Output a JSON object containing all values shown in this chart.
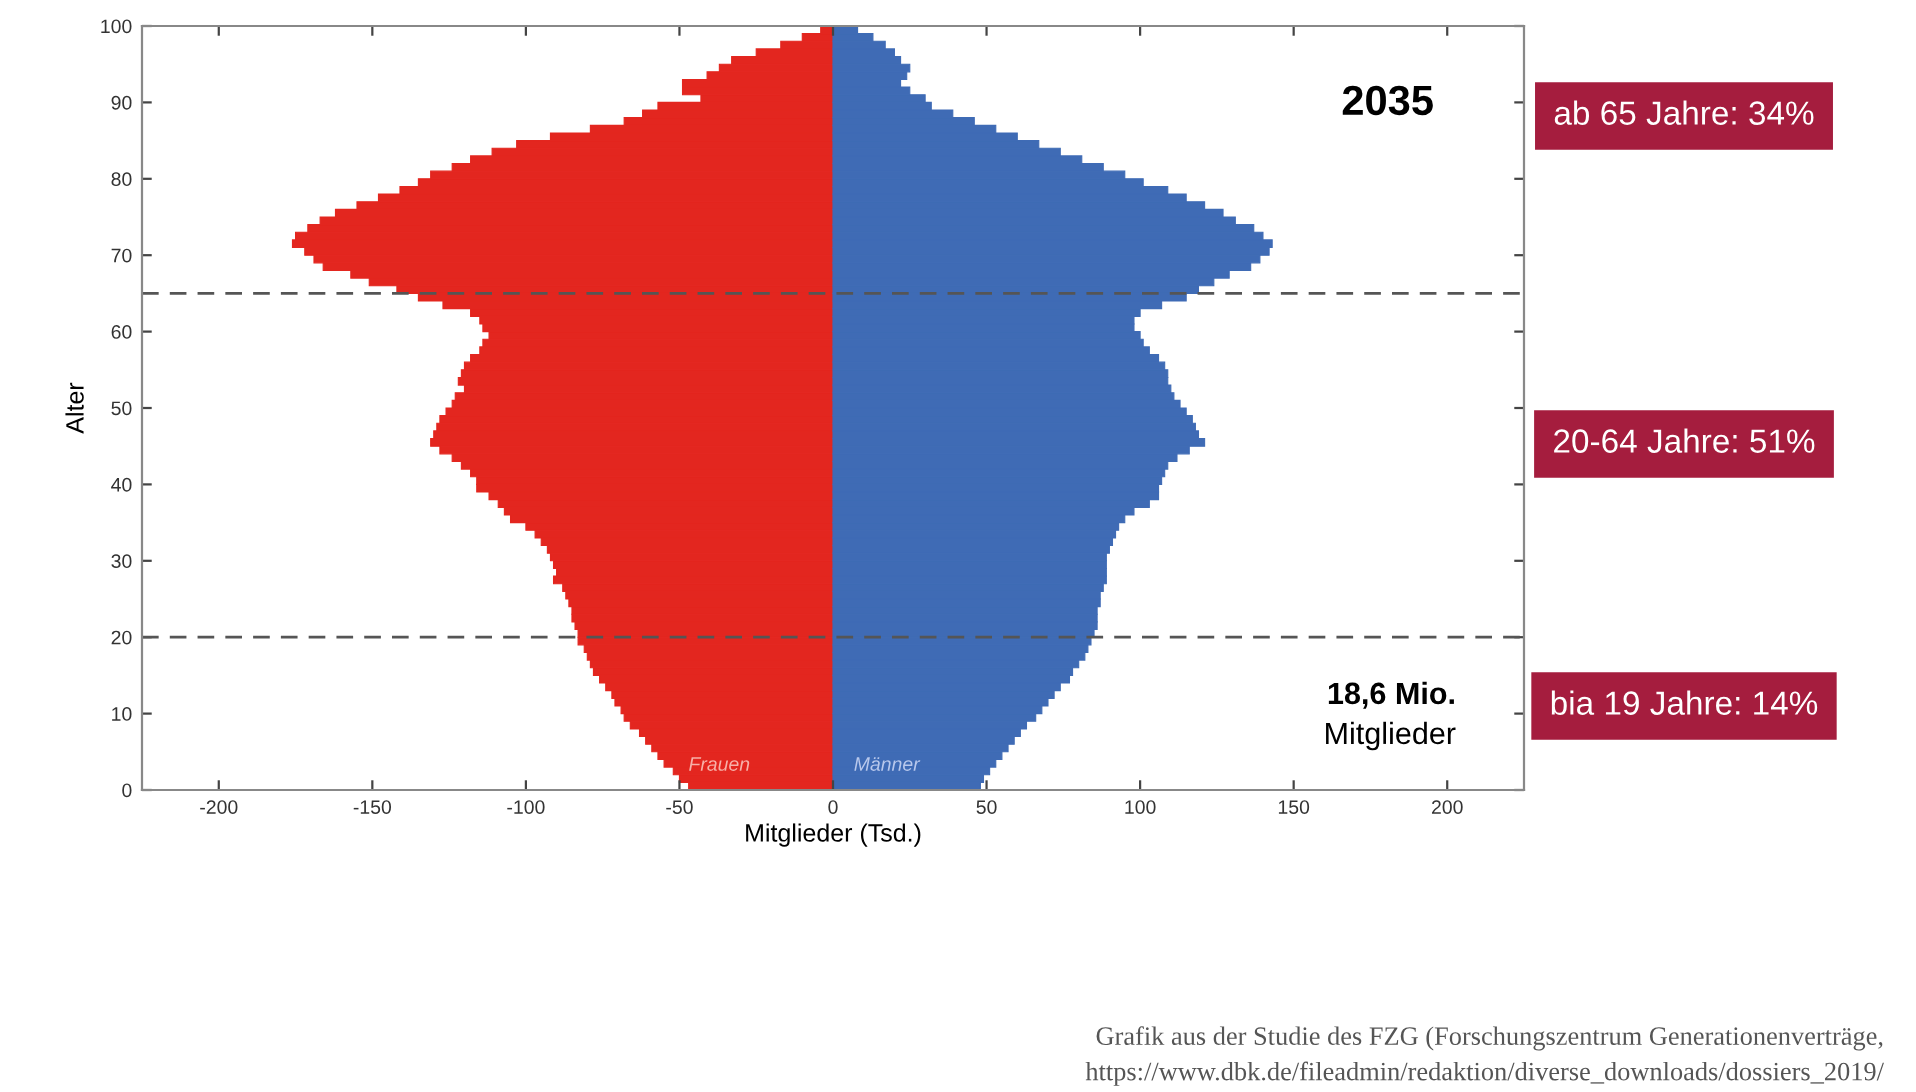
{
  "chart_data": {
    "type": "bar",
    "orientation": "horizontal",
    "stacked": true,
    "xlabel": "Mitglieder (Tsd.)",
    "ylabel": "Alter",
    "x": [
      0,
      1,
      2,
      3,
      4,
      5,
      6,
      7,
      8,
      9,
      10,
      11,
      12,
      13,
      14,
      15,
      16,
      17,
      18,
      19,
      20,
      21,
      22,
      23,
      24,
      25,
      26,
      27,
      28,
      29,
      30,
      31,
      32,
      33,
      34,
      35,
      36,
      37,
      38,
      39,
      40,
      41,
      42,
      43,
      44,
      45,
      46,
      47,
      48,
      49,
      50,
      51,
      52,
      53,
      54,
      55,
      56,
      57,
      58,
      59,
      60,
      61,
      62,
      63,
      64,
      65,
      66,
      67,
      68,
      69,
      70,
      71,
      72,
      73,
      74,
      75,
      76,
      77,
      78,
      79,
      80,
      81,
      82,
      83,
      84,
      85,
      86,
      87,
      88,
      89,
      90,
      91,
      92,
      93,
      94,
      95,
      96,
      97,
      98,
      99
    ],
    "series": [
      {
        "name": "Frauen",
        "color": "#e3261f",
        "values": [
          -47,
          -50,
          -52,
          -55,
          -57,
          -59,
          -61,
          -63,
          -66,
          -68,
          -69,
          -71,
          -72,
          -74,
          -76,
          -78,
          -79,
          -80,
          -81,
          -83,
          -83,
          -84,
          -85,
          -85,
          -86,
          -87,
          -88,
          -91,
          -90,
          -91,
          -92,
          -93,
          -95,
          -97,
          -100,
          -105,
          -107,
          -109,
          -112,
          -116,
          -116,
          -118,
          -121,
          -124,
          -128,
          -131,
          -130,
          -129,
          -128,
          -126,
          -124,
          -123,
          -120,
          -122,
          -121,
          -120,
          -118,
          -115,
          -114,
          -112,
          -114,
          -115,
          -118,
          -127,
          -135,
          -142,
          -151,
          -157,
          -166,
          -169,
          -172,
          -176,
          -175,
          -171,
          -167,
          -162,
          -155,
          -148,
          -141,
          -135,
          -131,
          -124,
          -118,
          -111,
          -103,
          -92,
          -79,
          -68,
          -62,
          -57,
          -43,
          -49,
          -49,
          -41,
          -37,
          -33,
          -25,
          -17,
          -10,
          -4
        ]
      },
      {
        "name": "Männer",
        "color": "#3f6bb5",
        "values": [
          48,
          49,
          51,
          53,
          55,
          57,
          59,
          61,
          63,
          66,
          68,
          70,
          72,
          74,
          77,
          78,
          80,
          82,
          83,
          84,
          85,
          86,
          86,
          86,
          87,
          87,
          88,
          89,
          89,
          89,
          89,
          90,
          91,
          92,
          93,
          95,
          98,
          103,
          106,
          106,
          107,
          108,
          109,
          112,
          116,
          121,
          119,
          118,
          117,
          115,
          113,
          111,
          110,
          109,
          109,
          108,
          106,
          103,
          101,
          100,
          98,
          98,
          100,
          107,
          115,
          119,
          124,
          129,
          136,
          139,
          142,
          143,
          140,
          137,
          131,
          127,
          121,
          115,
          109,
          101,
          95,
          88,
          81,
          74,
          67,
          60,
          53,
          46,
          39,
          32,
          30,
          25,
          22,
          24,
          25,
          22,
          20,
          17,
          13,
          8
        ]
      }
    ],
    "xlim": [
      -225,
      225
    ],
    "xticks": [
      -200,
      -150,
      -100,
      -50,
      0,
      50,
      100,
      150,
      200
    ],
    "ylim": [
      0,
      100
    ],
    "yticks": [
      0,
      10,
      20,
      30,
      40,
      50,
      60,
      70,
      80,
      90,
      100
    ],
    "grid": false,
    "legend": false,
    "ref_lines": [
      {
        "axis": "y",
        "value": 65,
        "color": "#555555",
        "line_style": "dashed"
      },
      {
        "axis": "y",
        "value": 20,
        "color": "#555555",
        "line_style": "dashed"
      }
    ],
    "annotations": [
      "2035",
      "18,6 Mio.",
      "Mitglieder",
      "ab 65 Jahre: 34%",
      "20-64 Jahre: 51%",
      "bia 19 Jahre: 14%",
      "Grafik aus der Studie des FZG (Forschungszentrum Generationenverträge,\nhttps://www.dbk.de/fileadmin/redaktion/diverse_downloads/dossiers_2019/"
    ]
  }
}
